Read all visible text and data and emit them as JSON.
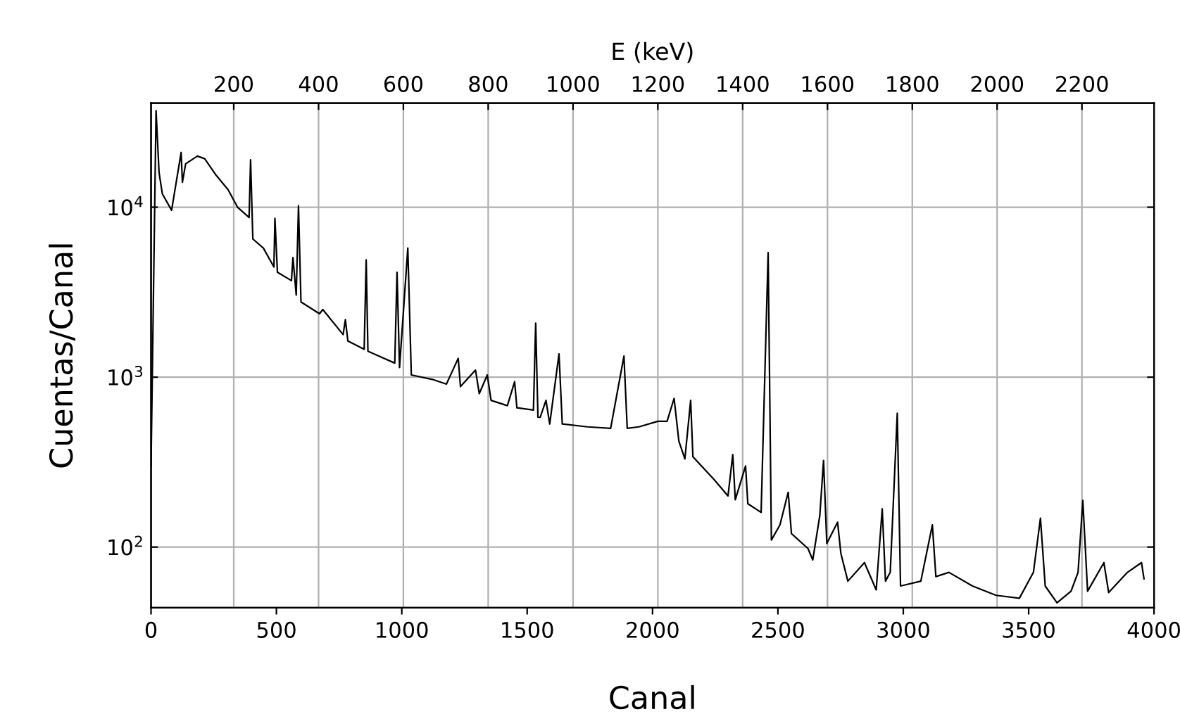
{
  "chart_data": {
    "type": "line",
    "xlabel": "Canal",
    "ylabel": "Cuentas/Canal",
    "x2label": "E (keV)",
    "color": "#000000",
    "log": "y",
    "grid": true,
    "marker": "none",
    "line_style": "solid",
    "x": [
      0,
      20,
      32,
      45,
      82,
      120,
      125,
      138,
      185,
      214,
      260,
      307,
      345,
      391,
      397,
      406,
      448,
      490,
      494,
      504,
      560,
      566,
      579,
      588,
      598,
      672,
      685,
      766,
      775,
      785,
      850,
      858,
      865,
      972,
      981,
      991,
      1024,
      1038,
      1122,
      1178,
      1225,
      1234,
      1294,
      1309,
      1341,
      1356,
      1421,
      1450,
      1459,
      1525,
      1534,
      1543,
      1552,
      1575,
      1590,
      1627,
      1640,
      1740,
      1833,
      1886,
      1899,
      1946,
      2021,
      2058,
      2086,
      2105,
      2129,
      2152,
      2161,
      2245,
      2301,
      2320,
      2330,
      2371,
      2380,
      2433,
      2461,
      2474,
      2508,
      2541,
      2554,
      2620,
      2639,
      2667,
      2682,
      2695,
      2738,
      2751,
      2779,
      2845,
      2892,
      2916,
      2929,
      2948,
      2976,
      2989,
      3070,
      3116,
      3130,
      3182,
      3276,
      3370,
      3463,
      3519,
      3547,
      3566,
      3613,
      3669,
      3697,
      3716,
      3735,
      3800,
      3819,
      3894,
      3950,
      3960
    ],
    "values": [
      300,
      37000,
      16000,
      12000,
      9600,
      21000,
      14000,
      18000,
      20000,
      19300,
      15400,
      12700,
      10000,
      8700,
      19000,
      6500,
      5750,
      4450,
      8600,
      4140,
      3700,
      5060,
      3040,
      10200,
      2770,
      2360,
      2500,
      1780,
      2180,
      1630,
      1460,
      4900,
      1420,
      1210,
      4140,
      1140,
      5750,
      1030,
      970,
      910,
      1290,
      880,
      1100,
      800,
      1030,
      730,
      680,
      940,
      660,
      640,
      2080,
      580,
      580,
      730,
      530,
      1370,
      530,
      510,
      500,
      1330,
      500,
      510,
      550,
      550,
      750,
      420,
      330,
      730,
      340,
      250,
      200,
      350,
      190,
      300,
      180,
      160,
      5400,
      110,
      135,
      210,
      120,
      98,
      84,
      153,
      323,
      105,
      140,
      92,
      63,
      81,
      56,
      168,
      63,
      71,
      613,
      59,
      63,
      135,
      67,
      71,
      59,
      52,
      50,
      71,
      148,
      59,
      47,
      55,
      71,
      188,
      55,
      81,
      54,
      71,
      81,
      65
    ],
    "xlim": [
      0,
      4000
    ],
    "xticks": [
      0,
      500,
      1000,
      1500,
      2000,
      2500,
      3000,
      3500,
      4000
    ],
    "x2lim": [
      5,
      2370
    ],
    "x2ticks": [
      200,
      400,
      600,
      800,
      1000,
      1200,
      1400,
      1600,
      1800,
      2000,
      2200
    ],
    "ylim": [
      44,
      41000
    ],
    "yticks": [
      {
        "value": 100,
        "label": "10$^{2}$"
      },
      {
        "value": 1000,
        "label": "10$^{3}$"
      },
      {
        "value": 10000,
        "label": "10$^{4}$"
      }
    ]
  }
}
